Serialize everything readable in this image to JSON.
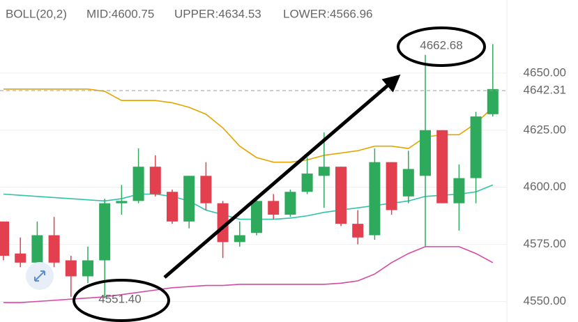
{
  "chart_data": {
    "type": "candlestick",
    "indicator": "BOLL(20,2)",
    "up_color": "#2eaa5c",
    "down_color": "#e2404f",
    "open": [
      4585,
      4571,
      4567,
      4579,
      4568,
      4561,
      4568,
      4593,
      4594,
      4609,
      4598,
      4585,
      4605,
      4593,
      4576,
      4580,
      4594,
      4588,
      4598,
      4605,
      4609,
      4584,
      4579,
      4611,
      4596,
      4605,
      4625,
      4593,
      4604,
      4632
    ],
    "high": [
      4585,
      4578,
      4585,
      4587,
      4570,
      4574,
      4595,
      4601,
      4617,
      4614,
      4599,
      4605,
      4611,
      4594,
      4585,
      4596,
      4597,
      4599,
      4613,
      4624,
      4609,
      4590,
      4617,
      4611,
      4616,
      4658,
      4625,
      4610,
      4633,
      4662.68
    ],
    "low": [
      4568,
      4565,
      4563,
      4565,
      4552,
      4558,
      4551.4,
      4588,
      4593,
      4596,
      4584,
      4582,
      4590,
      4569,
      4574,
      4579,
      4586,
      4587,
      4597,
      4591,
      4583,
      4575,
      4577,
      4588,
      4593,
      4574,
      4593,
      4581,
      4593,
      4631
    ],
    "close": [
      4570,
      4567,
      4579,
      4567,
      4561,
      4568,
      4593,
      4594,
      4609,
      4597,
      4585,
      4605,
      4593,
      4576,
      4579,
      4594,
      4588,
      4598,
      4606,
      4609,
      4584,
      4578,
      4611,
      4590,
      4608,
      4625,
      4593,
      4604,
      4631,
      4643
    ],
    "bands": [
      {
        "name": "MID:4600.75",
        "color": "#2ec4a8",
        "values": [
          4597,
          4596.5,
          4596,
          4595.5,
          4595,
          4594.5,
          4594,
          4595,
          4597,
          4597,
          4596,
          4594,
          4590,
          4588,
          4586,
          4586,
          4586,
          4586.5,
          4587.5,
          4589,
          4590,
          4591,
          4592,
          4593,
          4594,
          4596,
          4596.5,
          4597,
          4598,
          4601
        ]
      },
      {
        "name": "UPPER:4634.53",
        "color": "#e5a500",
        "values": [
          4643,
          4643,
          4643,
          4643,
          4643,
          4643,
          4642,
          4638,
          4638,
          4638,
          4637,
          4635,
          4632,
          4626,
          4618,
          4613,
          4611,
          4611,
          4612,
          4614,
          4615,
          4616,
          4618,
          4618,
          4617,
          4622,
          4623,
          4623,
          4628,
          4635
        ]
      },
      {
        "name": "LOWER:4566.96",
        "color": "#d24aa5",
        "values": [
          4549.5,
          4549.5,
          4550,
          4550.5,
          4551,
          4551.5,
          4552,
          4553,
          4554,
          4555,
          4556,
          4556.5,
          4557,
          4557,
          4557.5,
          4557.5,
          4557.5,
          4557.5,
          4557.5,
          4557.5,
          4558,
          4559,
          4562,
          4567,
          4571,
          4574,
          4574,
          4574,
          4571,
          4567
        ]
      }
    ],
    "last_price": 4642.31,
    "annotations": [
      4662.68,
      {
        "value": 4551.4,
        "label": "4551.40"
      }
    ],
    "ylim": [
      4541,
      4682
    ],
    "yticks": [
      {
        "value": 4550,
        "label": "4550.00"
      },
      {
        "value": 4575,
        "label": "4575.00"
      },
      {
        "value": 4600,
        "label": "4600.00"
      },
      {
        "value": 4625,
        "label": "4625.00"
      },
      {
        "value": 4650,
        "label": "4650.00"
      }
    ],
    "grid": true
  }
}
